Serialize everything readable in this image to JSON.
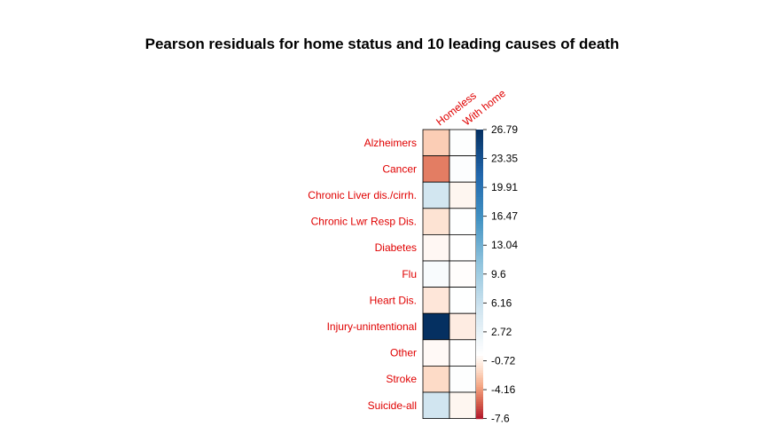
{
  "chart_data": {
    "type": "heatmap",
    "title": "Pearson residuals for home status and 10 leading causes of death",
    "columns": [
      "Homeless",
      "With home"
    ],
    "rows": [
      "Alzheimers",
      "Cancer",
      "Chronic Liver dis./cirrh.",
      "Chronic Lwr Resp Dis.",
      "Diabetes",
      "Flu",
      "Heart Dis.",
      "Injury-unintentional",
      "Other",
      "Stroke",
      "Suicide-all"
    ],
    "values": [
      [
        -2.4,
        0.2
      ],
      [
        -4.9,
        0.4
      ],
      [
        5.2,
        -0.5
      ],
      [
        -1.5,
        0.1
      ],
      [
        -0.4,
        0.0
      ],
      [
        0.8,
        -0.1
      ],
      [
        -1.3,
        0.1
      ],
      [
        26.79,
        -1.0
      ],
      [
        -0.3,
        0.0
      ],
      [
        -1.9,
        0.2
      ],
      [
        5.3,
        -0.5
      ]
    ],
    "legend_ticks": [
      "26.79",
      "23.35",
      "19.91",
      "16.47",
      "13.04",
      "9.6",
      "6.16",
      "2.72",
      "-0.72",
      "-4.16",
      "-7.6"
    ],
    "legend_range": [
      -7.6,
      26.79
    ],
    "colors": {
      "negative": "#b2182b",
      "zero": "#ffffff",
      "positive": "#053061",
      "label": "#e00000",
      "grid": "#000000"
    }
  }
}
